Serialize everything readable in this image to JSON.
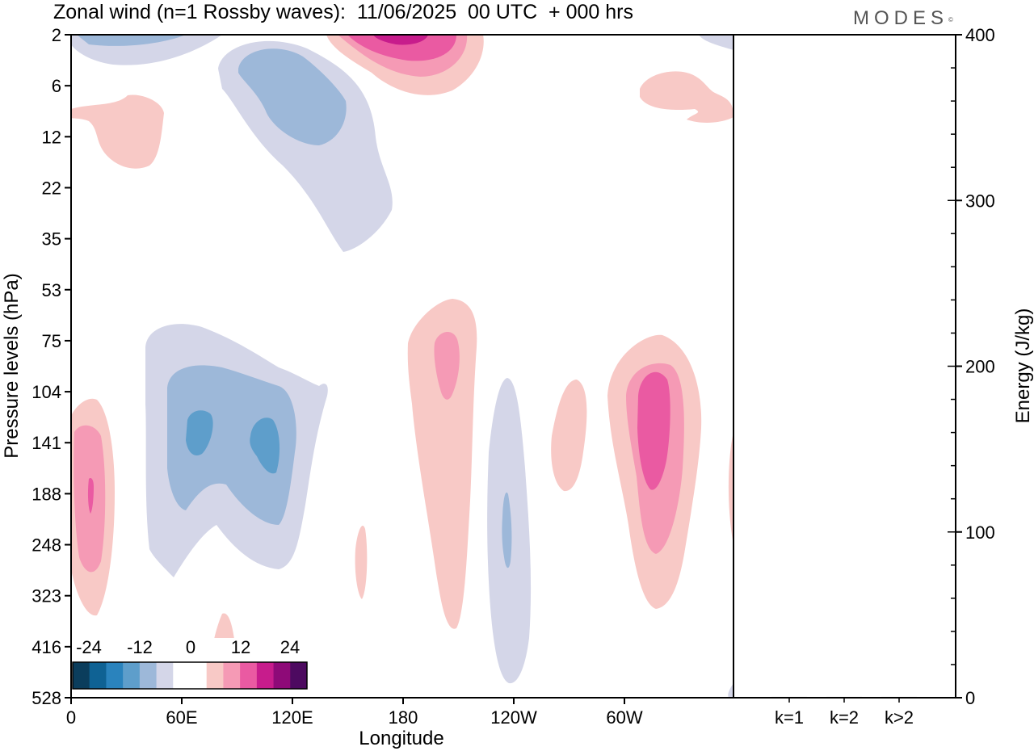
{
  "header": {
    "title": "Zonal wind (n=1 Rossby waves):  11/06/2025  00 UTC  + 000 hrs",
    "logo": "MODES",
    "logo_mark": "©"
  },
  "colors": {
    "neg_dark": "#0b3d5c",
    "neg_2": "#0f6294",
    "neg_3": "#2a83bd",
    "neg_4": "#5e9ecb",
    "neg_5": "#9db8d9",
    "neg_6": "#d4d6e8",
    "zero": "#ffffff",
    "pos_1": "#f8c9c6",
    "pos_2": "#f59ab5",
    "pos_3": "#ea5aa2",
    "pos_4": "#c71c8c",
    "pos_5": "#8e0a78",
    "pos_6": "#4d0a60"
  },
  "chart_data": [
    {
      "type": "heatmap",
      "title": "Zonal wind (n=1 Rossby waves):  11/06/2025  00 UTC  + 000 hrs",
      "xlabel": "Longitude",
      "ylabel": "Pressure levels (hPa)",
      "x_ticks": [
        "0",
        "60E",
        "120E",
        "180",
        "120W",
        "60W"
      ],
      "y_ticks": [
        "2",
        "6",
        "12",
        "22",
        "35",
        "53",
        "75",
        "104",
        "141",
        "188",
        "248",
        "323",
        "416",
        "528"
      ],
      "xlim": [
        0,
        360
      ],
      "colorbar": {
        "ticks": [
          "-24",
          "-12",
          "0",
          "12",
          "24"
        ],
        "levels": [
          -30,
          -25,
          -20,
          -15,
          -10,
          -5,
          -2.5,
          2.5,
          5,
          10,
          15,
          20,
          25,
          30
        ]
      },
      "features": [
        {
          "kind": "positive",
          "level": 4,
          "lon": 180,
          "p": 2,
          "note": "max near top"
        },
        {
          "kind": "negative",
          "level": 2,
          "lon": 110,
          "p": 8
        },
        {
          "kind": "positive",
          "level": 1,
          "lon": 20,
          "p": 12
        },
        {
          "kind": "positive",
          "level": 1,
          "lon": 320,
          "p": 7
        },
        {
          "kind": "negative",
          "level": 3,
          "lon": 65,
          "p": 141
        },
        {
          "kind": "negative",
          "level": 3,
          "lon": 105,
          "p": 141
        },
        {
          "kind": "positive",
          "level": 3,
          "lon": 10,
          "p": 188
        },
        {
          "kind": "positive",
          "level": 2,
          "lon": 200,
          "p": 95
        },
        {
          "kind": "negative",
          "level": 2,
          "lon": 237,
          "p": 248
        },
        {
          "kind": "positive",
          "level": 1,
          "lon": 268,
          "p": 141
        },
        {
          "kind": "positive",
          "level": 3,
          "lon": 308,
          "p": 141
        }
      ]
    },
    {
      "type": "bar",
      "categories": [
        "k=1",
        "k=2",
        "k>2"
      ],
      "values": [
        0.5,
        0.5,
        0.5
      ],
      "ylabel": "Energy (J/kg)",
      "ylim": [
        0,
        400
      ],
      "y_ticks": [
        "0",
        "100",
        "200",
        "300",
        "400"
      ]
    }
  ]
}
